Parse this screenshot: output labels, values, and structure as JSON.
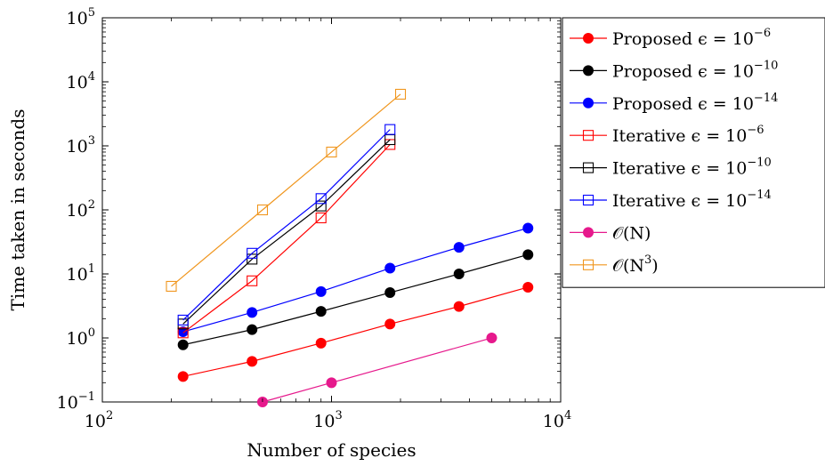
{
  "chart_data": {
    "type": "line",
    "xscale": "log",
    "yscale": "log",
    "xlim": [
      100,
      10000
    ],
    "ylim": [
      0.1,
      100000
    ],
    "xlabel": "Number of species",
    "ylabel": "Time taken in seconds",
    "grid": false,
    "legend_position": "outside-top-right",
    "x_ticks": [
      {
        "value": 100,
        "base": "10",
        "exp": "2"
      },
      {
        "value": 1000,
        "base": "10",
        "exp": "3"
      },
      {
        "value": 10000,
        "base": "10",
        "exp": "4"
      }
    ],
    "y_ticks": [
      {
        "value": 0.1,
        "base": "10",
        "exp": "−1"
      },
      {
        "value": 1,
        "base": "10",
        "exp": "0"
      },
      {
        "value": 10,
        "base": "10",
        "exp": "1"
      },
      {
        "value": 100,
        "base": "10",
        "exp": "2"
      },
      {
        "value": 1000,
        "base": "10",
        "exp": "3"
      },
      {
        "value": 10000,
        "base": "10",
        "exp": "4"
      },
      {
        "value": 100000,
        "base": "10",
        "exp": "5"
      }
    ],
    "series": [
      {
        "label_main": "Proposed ϵ = 10",
        "label_sup": "−6",
        "color": "#ff0000",
        "marker": "circle",
        "x": [
          225,
          450,
          900,
          1800,
          3600,
          7200
        ],
        "y": [
          0.25,
          0.43,
          0.83,
          1.65,
          3.1,
          6.2
        ]
      },
      {
        "label_main": "Proposed ϵ = 10",
        "label_sup": "−10",
        "color": "#000000",
        "marker": "circle",
        "x": [
          225,
          450,
          900,
          1800,
          3600,
          7200
        ],
        "y": [
          0.78,
          1.35,
          2.6,
          5.1,
          10,
          20
        ]
      },
      {
        "label_main": "Proposed ϵ = 10",
        "label_sup": "−14",
        "color": "#0000ff",
        "marker": "circle",
        "x": [
          225,
          450,
          900,
          1800,
          3600,
          7200
        ],
        "y": [
          1.25,
          2.5,
          5.3,
          12.3,
          26,
          52
        ]
      },
      {
        "label_main": "Iterative ϵ = 10",
        "label_sup": "−6",
        "color": "#ff0000",
        "marker": "square",
        "x": [
          225,
          450,
          900,
          1800
        ],
        "y": [
          1.2,
          7.8,
          75,
          1050
        ]
      },
      {
        "label_main": "Iterative ϵ = 10",
        "label_sup": "−10",
        "color": "#000000",
        "marker": "square",
        "x": [
          225,
          450,
          900,
          1800
        ],
        "y": [
          1.65,
          17,
          115,
          1250
        ]
      },
      {
        "label_main": "Iterative ϵ = 10",
        "label_sup": "−14",
        "color": "#0000ff",
        "marker": "square",
        "x": [
          225,
          450,
          900,
          1800
        ],
        "y": [
          1.9,
          21,
          150,
          1800
        ]
      },
      {
        "label_main": "𝒪(N)",
        "label_sup": "",
        "color": "#e6198c",
        "marker": "circle",
        "x": [
          500,
          1000,
          5000
        ],
        "y": [
          0.1,
          0.2,
          1
        ]
      },
      {
        "label_main": "𝒪(N",
        "label_sup": "3",
        "label_tail": ")",
        "color": "#f0961e",
        "marker": "square",
        "x": [
          200,
          500,
          1000,
          2000
        ],
        "y": [
          6.4,
          100,
          800,
          6400
        ]
      }
    ]
  }
}
